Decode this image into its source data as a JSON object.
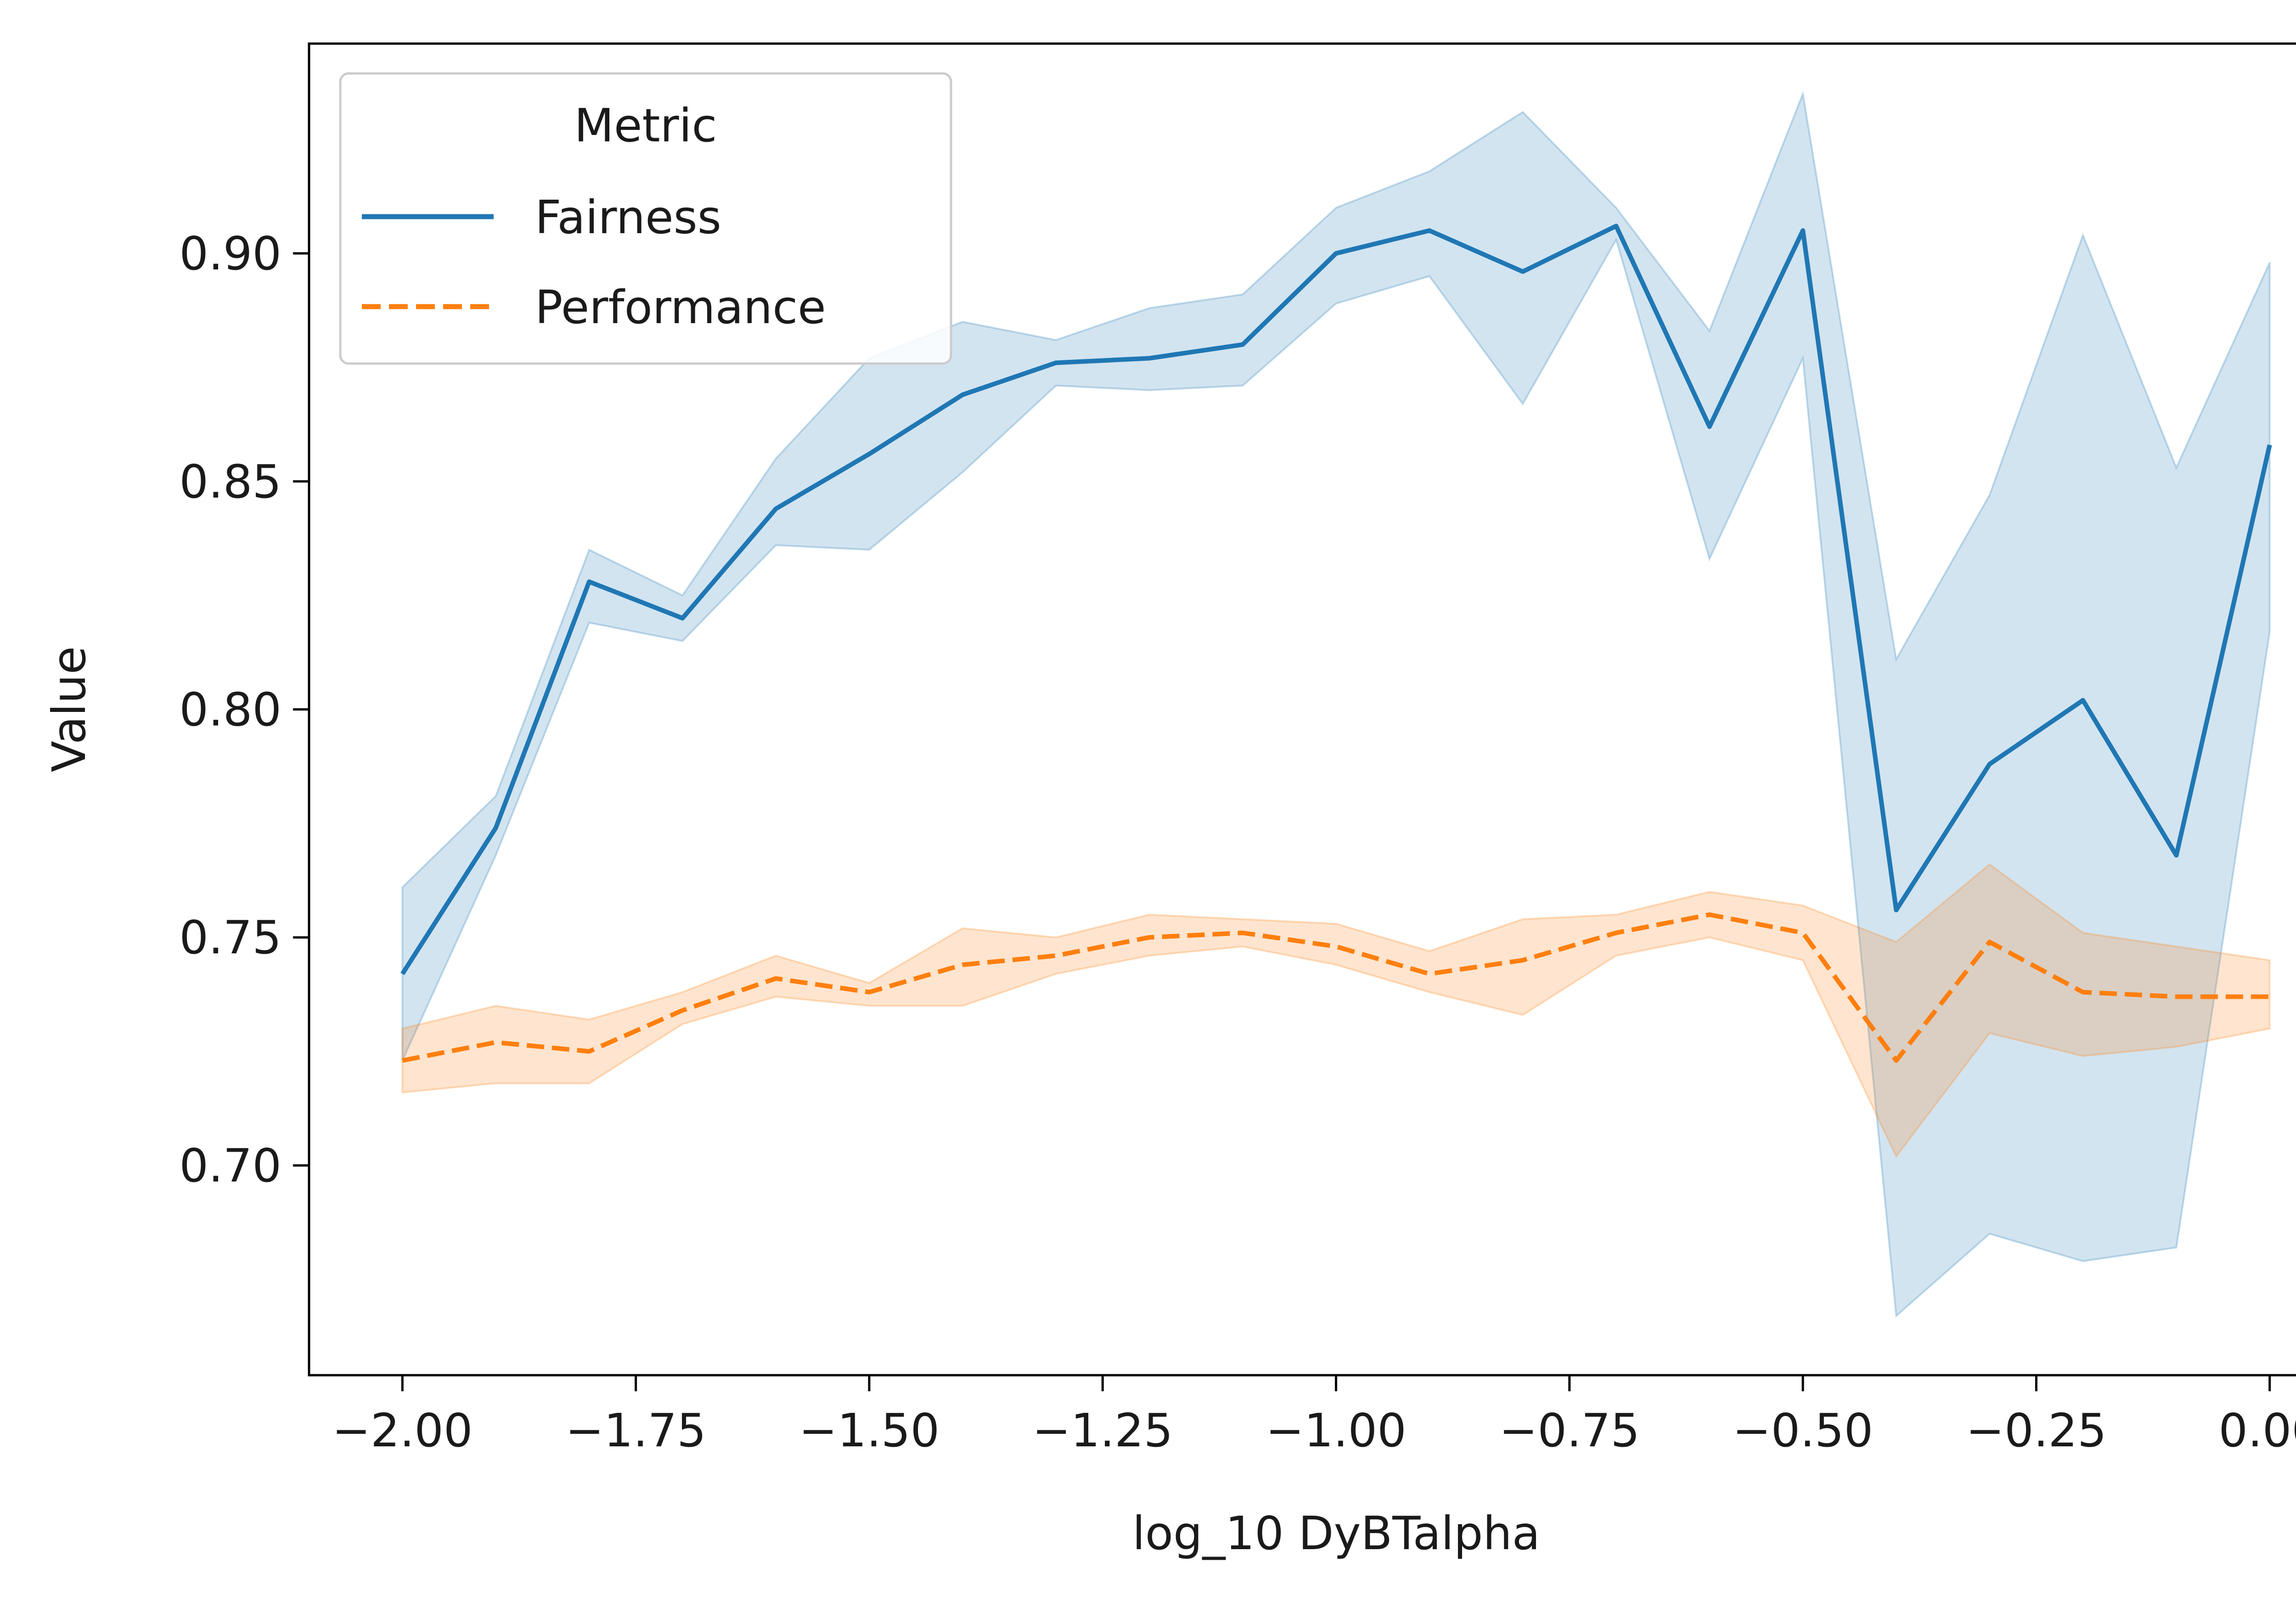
{
  "chart_data": {
    "type": "line",
    "title": "",
    "xlabel": "log_10 DyBTalpha",
    "ylabel": "Value",
    "xlim": [
      -2.1,
      0.1
    ],
    "ylim": [
      0.654,
      0.946
    ],
    "grid": false,
    "legend": {
      "title": "Metric",
      "placement": "top-left",
      "entries": [
        {
          "label": "Fairness",
          "color": "#1f77b4",
          "dash": "solid"
        },
        {
          "label": "Performance",
          "color": "#ff7f0e",
          "dash": "dashed"
        }
      ]
    },
    "x_ticks": [
      -2.0,
      -1.75,
      -1.5,
      -1.25,
      -1.0,
      -0.75,
      -0.5,
      -0.25,
      0.0
    ],
    "x_tick_labels": [
      "−2.00",
      "−1.75",
      "−1.50",
      "−1.25",
      "−1.00",
      "−0.75",
      "−0.50",
      "−0.25",
      "0.00"
    ],
    "y_ticks": [
      0.7,
      0.75,
      0.8,
      0.85,
      0.9
    ],
    "y_tick_labels": [
      "0.70",
      "0.75",
      "0.80",
      "0.85",
      "0.90"
    ],
    "x": [
      -2.0,
      -1.9,
      -1.8,
      -1.7,
      -1.6,
      -1.5,
      -1.4,
      -1.3,
      -1.2,
      -1.1,
      -1.0,
      -0.9,
      -0.8,
      -0.7,
      -0.6,
      -0.5,
      -0.4,
      -0.3,
      -0.2,
      -0.1,
      0.0
    ],
    "series": [
      {
        "name": "Fairness",
        "color": "#1f77b4",
        "dash": "solid",
        "values": [
          0.742,
          0.774,
          0.828,
          0.82,
          0.844,
          0.856,
          0.869,
          0.876,
          0.877,
          0.88,
          0.9,
          0.905,
          0.896,
          0.906,
          0.862,
          0.905,
          0.756,
          0.788,
          0.802,
          0.768,
          0.858
        ],
        "ci_lower": [
          0.723,
          0.768,
          0.819,
          0.815,
          0.836,
          0.835,
          0.852,
          0.871,
          0.87,
          0.871,
          0.889,
          0.895,
          0.867,
          0.903,
          0.833,
          0.877,
          0.667,
          0.685,
          0.679,
          0.682,
          0.817
        ],
        "ci_upper": [
          0.761,
          0.781,
          0.835,
          0.825,
          0.855,
          0.877,
          0.885,
          0.881,
          0.888,
          0.891,
          0.91,
          0.918,
          0.931,
          0.91,
          0.883,
          0.935,
          0.811,
          0.847,
          0.904,
          0.853,
          0.898
        ]
      },
      {
        "name": "Performance",
        "color": "#ff7f0e",
        "dash": "dashed",
        "values": [
          0.723,
          0.727,
          0.725,
          0.734,
          0.741,
          0.738,
          0.744,
          0.746,
          0.75,
          0.751,
          0.748,
          0.742,
          0.745,
          0.751,
          0.755,
          0.751,
          0.723,
          0.749,
          0.738,
          0.737,
          0.737
        ],
        "ci_lower": [
          0.716,
          0.718,
          0.718,
          0.731,
          0.737,
          0.735,
          0.735,
          0.742,
          0.746,
          0.748,
          0.744,
          0.738,
          0.733,
          0.746,
          0.75,
          0.745,
          0.702,
          0.729,
          0.724,
          0.726,
          0.73
        ],
        "ci_upper": [
          0.73,
          0.735,
          0.732,
          0.738,
          0.746,
          0.74,
          0.752,
          0.75,
          0.755,
          0.754,
          0.753,
          0.747,
          0.754,
          0.755,
          0.76,
          0.757,
          0.749,
          0.766,
          0.751,
          0.748,
          0.745
        ]
      }
    ]
  }
}
